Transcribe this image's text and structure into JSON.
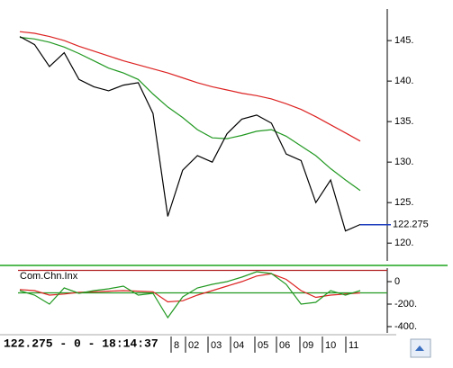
{
  "status": "122.275 - 0 - 18:14:37",
  "x_labels": [
    "8",
    "02",
    "03",
    "04",
    "05",
    "06",
    "09",
    "10",
    "11"
  ],
  "chart_data": [
    {
      "type": "line",
      "current_value": 122.275,
      "current_color": "#1f3fbf",
      "ylim": [
        117.8,
        148.9
      ],
      "yticks": [
        {
          "value": 120,
          "label": "120."
        },
        {
          "value": 125,
          "label": "125."
        },
        {
          "value": 130,
          "label": "130."
        },
        {
          "value": 135,
          "label": "135."
        },
        {
          "value": 140,
          "label": "140."
        },
        {
          "value": 145,
          "label": "145."
        }
      ],
      "series": [
        {
          "color": "#dd2222",
          "values": [
            146.1,
            145.9,
            145.5,
            145.0,
            144.3,
            143.7,
            143.1,
            142.5,
            142.0,
            141.5,
            141.0,
            140.4,
            139.8,
            139.3,
            138.9,
            138.5,
            138.2,
            137.8,
            137.2,
            136.5,
            135.6,
            134.6,
            133.6,
            132.6
          ]
        },
        {
          "color": "#229922",
          "values": [
            145.4,
            145.2,
            144.8,
            144.2,
            143.4,
            142.5,
            141.6,
            141.0,
            140.2,
            138.4,
            136.8,
            135.5,
            134.0,
            133.0,
            132.9,
            133.3,
            133.8,
            134.0,
            133.2,
            132.0,
            130.8,
            129.2,
            127.8,
            126.5
          ]
        },
        {
          "color": "#000000",
          "values": [
            145.5,
            144.5,
            141.8,
            143.5,
            140.2,
            139.3,
            138.8,
            139.5,
            139.8,
            136.0,
            123.3,
            129.0,
            130.8,
            130.0,
            133.5,
            135.3,
            135.8,
            134.8,
            131.0,
            130.2,
            125.0,
            127.8,
            121.5,
            122.3
          ]
        }
      ]
    },
    {
      "type": "line",
      "title": "Com.Chn.Inx",
      "ylim": [
        -440,
        120
      ],
      "yticks": [
        0,
        {
          "value": -200,
          "label": "-200."
        },
        {
          "value": -400,
          "label": "-400."
        }
      ],
      "hlines": [
        {
          "value": 100,
          "color": "#b22222"
        },
        {
          "value": -100,
          "color": "#229922"
        }
      ],
      "series": [
        {
          "color": "#dd2222",
          "values": [
            -70,
            -80,
            -120,
            -110,
            -95,
            -90,
            -85,
            -80,
            -85,
            -90,
            -180,
            -170,
            -120,
            -80,
            -40,
            0,
            50,
            70,
            20,
            -80,
            -140,
            -120,
            -110,
            -100
          ]
        },
        {
          "color": "#229922",
          "values": [
            -80,
            -120,
            -200,
            -56,
            -104,
            -80,
            -64,
            -40,
            -120,
            -104,
            -320,
            -136,
            -56,
            -24,
            0,
            40,
            88,
            72,
            -24,
            -200,
            -184,
            -80,
            -120,
            -80
          ]
        }
      ]
    }
  ]
}
